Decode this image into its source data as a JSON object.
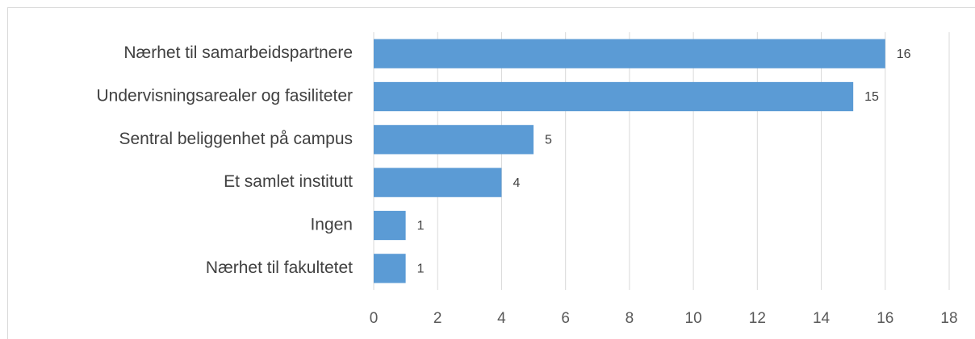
{
  "chart_data": {
    "type": "bar",
    "orientation": "horizontal",
    "categories": [
      "Nærhet til samarbeidspartnere",
      "Undervisningsarealer og fasiliteter",
      "Sentral beliggenhet på campus",
      "Et samlet institutt",
      "Ingen",
      "Nærhet til fakultetet"
    ],
    "values": [
      16,
      15,
      5,
      4,
      1,
      1
    ],
    "color": "#5b9bd5",
    "xlim": [
      0,
      18
    ],
    "xticks": [
      0,
      2,
      4,
      6,
      8,
      10,
      12,
      14,
      16,
      18
    ],
    "grid": true
  }
}
